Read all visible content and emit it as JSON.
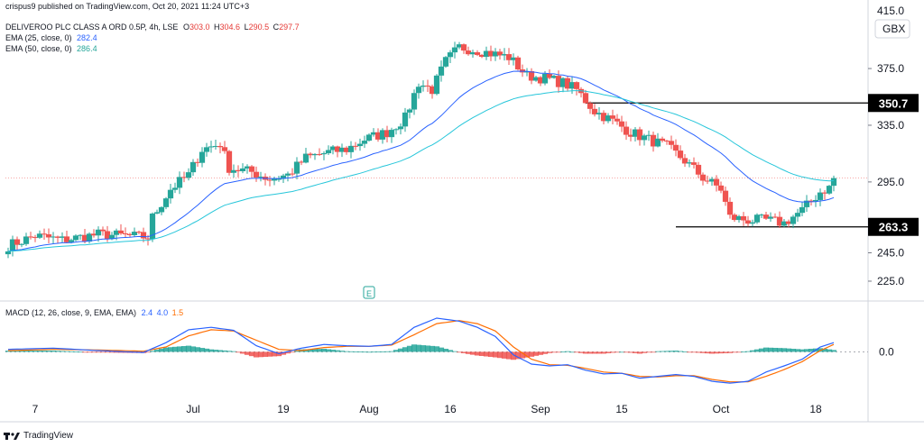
{
  "header": {
    "published": "crispus9 published on TradingView.com, Oct 20, 2021 11:24 UTC+3",
    "symbol": "DELIVEROO PLC CLASS A ORD 0.5P, 4h, LSE",
    "o_label": "O",
    "o_value": "303.0",
    "h_label": "H",
    "h_value": "304.6",
    "l_label": "L",
    "l_value": "290.5",
    "c_label": "C",
    "c_value": "297.7",
    "ema25_label": "EMA (25, close, 0)",
    "ema25_value": "282.4",
    "ema50_label": "EMA (50, close, 0)",
    "ema50_value": "286.4",
    "macd_label": "MACD (12, 26, close, 9, EMA, EMA)",
    "macd_v1": "2.4",
    "macd_v2": "4.0",
    "macd_v3": "1.5"
  },
  "currency": "GBX",
  "earnings_marker": "E",
  "logo_text": "TradingView",
  "colors": {
    "up": "#26a69a",
    "down": "#ef5350",
    "ema25": "#2962ff",
    "ema50": "#26c6da",
    "macd_line": "#2962ff",
    "signal_line": "#ff6d00",
    "hist_up": "#26a69a",
    "hist_down": "#ef5350"
  },
  "chart_data": {
    "type": "candlestick",
    "price_axis": {
      "ticks": [
        225.0,
        245.0,
        295.0,
        335.0,
        375.0
      ],
      "tick_labels": [
        "225.0",
        "245.0",
        "295.0",
        "335.0",
        "375.0"
      ],
      "top_partial_label": "415.0",
      "ylim": [
        211,
        417
      ]
    },
    "time_axis": {
      "labels": [
        "7",
        "Jul",
        "19",
        "Aug",
        "16",
        "Sep",
        "15",
        "Oct",
        "18"
      ],
      "label_bars": [
        6,
        41,
        61,
        80,
        98,
        118,
        136,
        158,
        179
      ],
      "bar_count": 184
    },
    "levels": [
      {
        "value": 350.7,
        "label": "350.7",
        "from_bar": 128
      },
      {
        "value": 263.3,
        "label": "263.3",
        "from_bar": 148
      }
    ],
    "last_price": 297.7,
    "close_anchors": [
      [
        0,
        250
      ],
      [
        6,
        257
      ],
      [
        12,
        254
      ],
      [
        20,
        258
      ],
      [
        26,
        257
      ],
      [
        31,
        256
      ],
      [
        32,
        270
      ],
      [
        36,
        290
      ],
      [
        40,
        300
      ],
      [
        43,
        318
      ],
      [
        47,
        322
      ],
      [
        49,
        305
      ],
      [
        54,
        302
      ],
      [
        58,
        297
      ],
      [
        62,
        300
      ],
      [
        66,
        312
      ],
      [
        71,
        316
      ],
      [
        75,
        318
      ],
      [
        79,
        325
      ],
      [
        84,
        330
      ],
      [
        88,
        340
      ],
      [
        91,
        365
      ],
      [
        94,
        360
      ],
      [
        97,
        380
      ],
      [
        100,
        390
      ],
      [
        104,
        388
      ],
      [
        108,
        385
      ],
      [
        111,
        383
      ],
      [
        115,
        370
      ],
      [
        119,
        368
      ],
      [
        123,
        365
      ],
      [
        126,
        360
      ],
      [
        130,
        345
      ],
      [
        134,
        338
      ],
      [
        138,
        330
      ],
      [
        142,
        325
      ],
      [
        146,
        320
      ],
      [
        150,
        310
      ],
      [
        154,
        298
      ],
      [
        158,
        290
      ],
      [
        160,
        270
      ],
      [
        164,
        268
      ],
      [
        168,
        268
      ],
      [
        172,
        266
      ],
      [
        176,
        275
      ],
      [
        180,
        288
      ],
      [
        182,
        291
      ],
      [
        183,
        297.7
      ]
    ],
    "ema25_last": 282.4,
    "ema50_last": 286.4,
    "macd": {
      "ylim": [
        -7,
        8
      ],
      "zero_label": "0.0",
      "macd_anchors": [
        [
          0,
          0.4
        ],
        [
          10,
          0.6
        ],
        [
          20,
          0.2
        ],
        [
          30,
          -0.1
        ],
        [
          35,
          1.5
        ],
        [
          40,
          3.6
        ],
        [
          45,
          4.0
        ],
        [
          50,
          3.5
        ],
        [
          55,
          1.0
        ],
        [
          60,
          -0.3
        ],
        [
          65,
          0.6
        ],
        [
          70,
          1.2
        ],
        [
          75,
          1.0
        ],
        [
          80,
          0.9
        ],
        [
          85,
          1.2
        ],
        [
          90,
          4.0
        ],
        [
          95,
          5.5
        ],
        [
          100,
          5.0
        ],
        [
          104,
          4.0
        ],
        [
          108,
          2.5
        ],
        [
          112,
          -0.5
        ],
        [
          116,
          -2.0
        ],
        [
          120,
          -2.3
        ],
        [
          124,
          -2.1
        ],
        [
          128,
          -3.0
        ],
        [
          132,
          -3.6
        ],
        [
          136,
          -3.5
        ],
        [
          140,
          -4.3
        ],
        [
          144,
          -4.0
        ],
        [
          148,
          -3.7
        ],
        [
          152,
          -4.0
        ],
        [
          156,
          -4.8
        ],
        [
          160,
          -5.1
        ],
        [
          164,
          -4.8
        ],
        [
          168,
          -3.3
        ],
        [
          172,
          -2.3
        ],
        [
          176,
          -1.2
        ],
        [
          180,
          0.8
        ],
        [
          183,
          1.5
        ]
      ],
      "signal_anchors": [
        [
          0,
          0.2
        ],
        [
          10,
          0.4
        ],
        [
          20,
          0.3
        ],
        [
          30,
          0.1
        ],
        [
          35,
          0.8
        ],
        [
          40,
          2.6
        ],
        [
          45,
          3.6
        ],
        [
          50,
          3.4
        ],
        [
          55,
          1.9
        ],
        [
          60,
          0.4
        ],
        [
          65,
          0.2
        ],
        [
          70,
          0.7
        ],
        [
          75,
          0.9
        ],
        [
          80,
          0.9
        ],
        [
          85,
          1.1
        ],
        [
          90,
          2.8
        ],
        [
          95,
          4.6
        ],
        [
          100,
          5.1
        ],
        [
          104,
          4.6
        ],
        [
          108,
          3.4
        ],
        [
          112,
          0.8
        ],
        [
          116,
          -1.2
        ],
        [
          120,
          -2.1
        ],
        [
          124,
          -2.2
        ],
        [
          128,
          -2.7
        ],
        [
          132,
          -3.3
        ],
        [
          136,
          -3.5
        ],
        [
          140,
          -4.0
        ],
        [
          144,
          -4.1
        ],
        [
          148,
          -3.9
        ],
        [
          152,
          -3.9
        ],
        [
          156,
          -4.5
        ],
        [
          160,
          -4.9
        ],
        [
          164,
          -4.9
        ],
        [
          168,
          -4.0
        ],
        [
          172,
          -2.9
        ],
        [
          176,
          -1.6
        ],
        [
          180,
          0.2
        ],
        [
          183,
          1.2
        ]
      ]
    }
  }
}
